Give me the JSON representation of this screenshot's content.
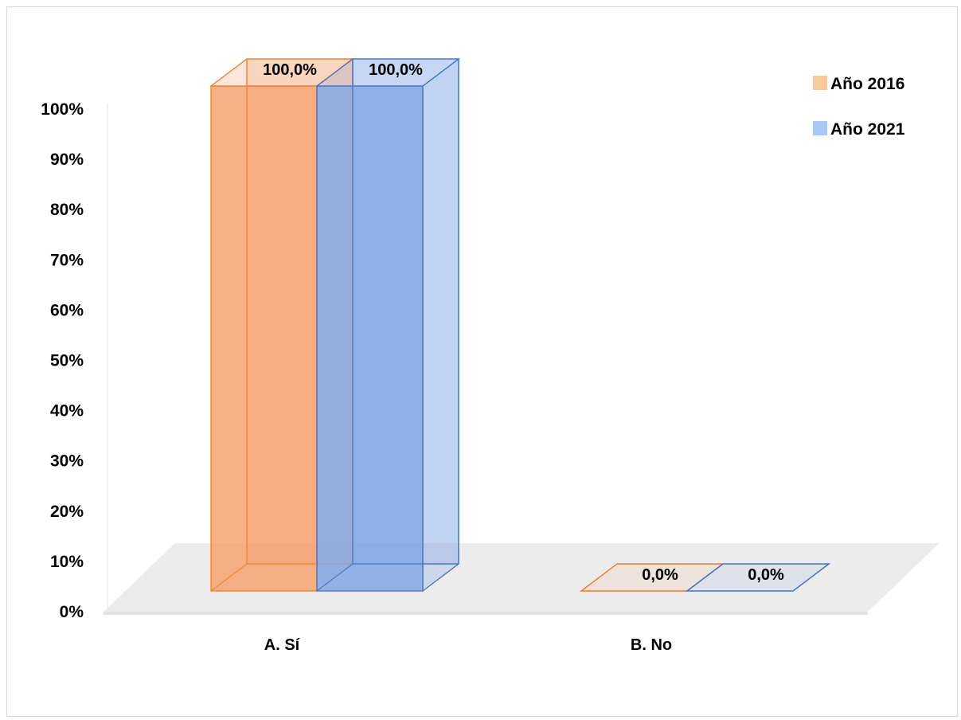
{
  "chart_data": {
    "type": "bar",
    "style": "3d-clustered-column",
    "categories": [
      "A. Sí",
      "B. No"
    ],
    "series": [
      {
        "name": "Año 2016",
        "values": [
          100.0,
          0.0
        ],
        "labels": [
          "100,0%",
          "0,0%"
        ],
        "color": "#F5A06A",
        "edge": "#ED7D31"
      },
      {
        "name": "Año 2021",
        "values": [
          100.0,
          0.0
        ],
        "labels": [
          "100,0%",
          "0,0%"
        ],
        "color": "#7EA3E4",
        "edge": "#4472C4"
      }
    ],
    "y_ticks": [
      "0%",
      "10%",
      "20%",
      "30%",
      "40%",
      "50%",
      "60%",
      "70%",
      "80%",
      "90%",
      "100%"
    ],
    "ylim": [
      0,
      100
    ],
    "grid": false,
    "legend_position": "top-right",
    "legend_colors": [
      "#F9CB9C",
      "#A9C8F5"
    ]
  }
}
